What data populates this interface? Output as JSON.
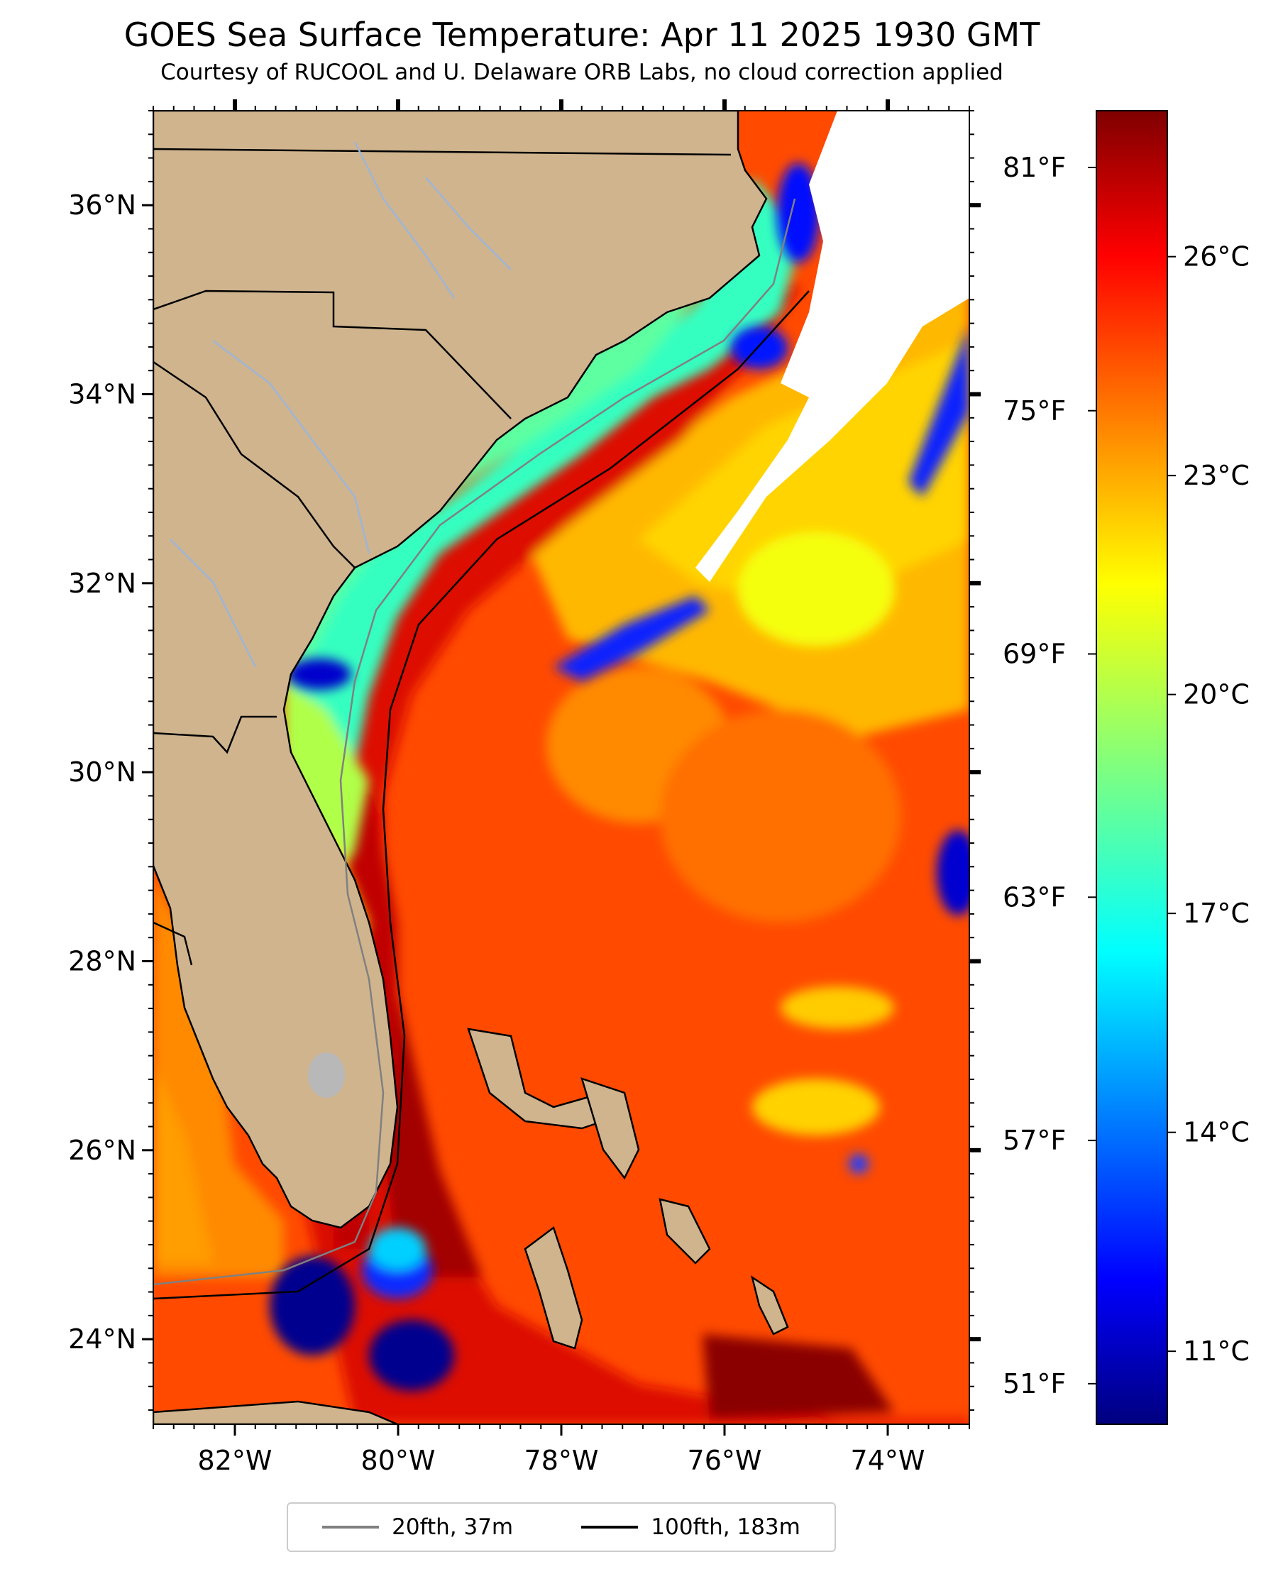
{
  "title": "GOES Sea Surface Temperature: Apr 11 2025 1930 GMT",
  "subtitle": "Courtesy of RUCOOL and U. Delaware ORB Labs, no cloud correction applied",
  "map": {
    "lon_range": [
      -83.0,
      -73.0
    ],
    "lat_range": [
      23.1,
      37.0
    ],
    "lat_ticks": [
      {
        "value": 36,
        "label": "36°N"
      },
      {
        "value": 34,
        "label": "34°N"
      },
      {
        "value": 32,
        "label": "32°N"
      },
      {
        "value": 30,
        "label": "30°N"
      },
      {
        "value": 28,
        "label": "28°N"
      },
      {
        "value": 26,
        "label": "26°N"
      },
      {
        "value": 24,
        "label": "24°N"
      }
    ],
    "lon_ticks": [
      {
        "value": -82,
        "label": "82°W"
      },
      {
        "value": -80,
        "label": "80°W"
      },
      {
        "value": -78,
        "label": "78°W"
      },
      {
        "value": -76,
        "label": "76°W"
      },
      {
        "value": -74,
        "label": "74°W"
      }
    ],
    "colors": {
      "land": "#cfb48e",
      "river": "#9fb5d6",
      "border": "#000000",
      "cloud": "#ffffff"
    }
  },
  "colorbar": {
    "colormap": "jet",
    "range_c": [
      10.0,
      28.0
    ],
    "celsius_ticks": [
      {
        "value": 11,
        "label": "11°C"
      },
      {
        "value": 14,
        "label": "14°C"
      },
      {
        "value": 17,
        "label": "17°C"
      },
      {
        "value": 20,
        "label": "20°C"
      },
      {
        "value": 23,
        "label": "23°C"
      },
      {
        "value": 26,
        "label": "26°C"
      }
    ],
    "fahrenheit_ticks": [
      {
        "value": 51,
        "label": "51°F"
      },
      {
        "value": 57,
        "label": "57°F"
      },
      {
        "value": 63,
        "label": "63°F"
      },
      {
        "value": 69,
        "label": "69°F"
      },
      {
        "value": 75,
        "label": "75°F"
      },
      {
        "value": 81,
        "label": "81°F"
      }
    ]
  },
  "legend": {
    "items": [
      {
        "label": "20fth, 37m",
        "color": "#808080"
      },
      {
        "label": "100fth, 183m",
        "color": "#000000"
      }
    ]
  }
}
